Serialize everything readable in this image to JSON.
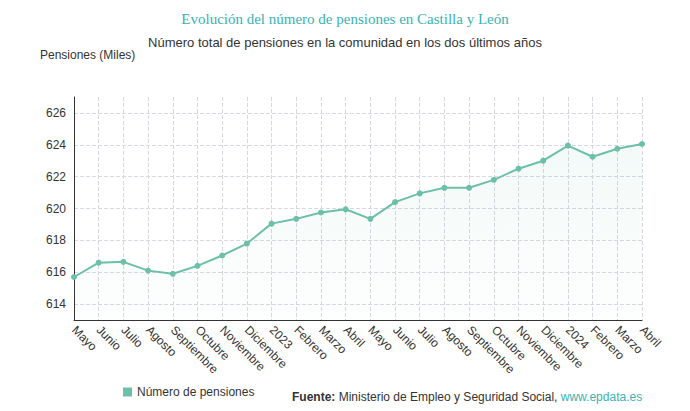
{
  "chart_data": {
    "type": "line",
    "title": "Evolución del número de pensiones en Castilla y León",
    "subtitle": "Número total de pensiones en la comunidad en los dos últimos años",
    "y_label": "Pensiones (Miles)",
    "categories": [
      "Mayo",
      "Junio",
      "Julio",
      "Agosto",
      "Septiembre",
      "Octubre",
      "Noviembre",
      "Diciembre",
      "2023",
      "Febrero",
      "Marzo",
      "Abril",
      "Mayo",
      "Junio",
      "Julio",
      "Agosto",
      "Septiembre",
      "Octubre",
      "Noviembre",
      "Diciembre",
      "2024",
      "Febrero",
      "Marzo",
      "Abril"
    ],
    "series": [
      {
        "name": "Número de pensiones",
        "color": "#6cbfa9",
        "values": [
          615.7,
          616.6,
          616.65,
          616.1,
          615.9,
          616.4,
          617.05,
          617.8,
          619.05,
          619.35,
          619.75,
          619.95,
          619.35,
          620.4,
          620.95,
          621.3,
          621.3,
          621.8,
          622.5,
          623.0,
          623.95,
          623.25,
          623.75,
          624.05
        ]
      }
    ],
    "ylim": [
      613,
      627
    ],
    "yticks": [
      614,
      616,
      618,
      620,
      622,
      624,
      626
    ],
    "grid": true,
    "legend": "bottom",
    "source_label": "Fuente:",
    "source": "Ministerio de Empleo y Seguridad Social,",
    "source_link": "www.epdata.es"
  }
}
